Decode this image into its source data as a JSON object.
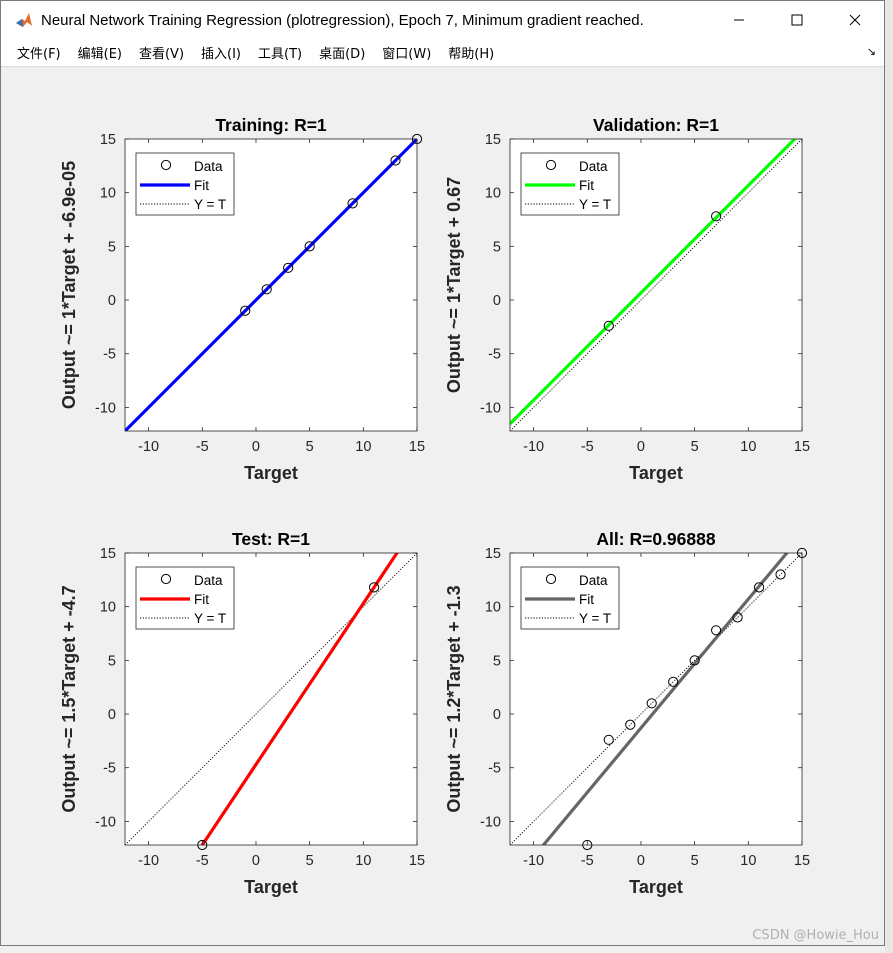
{
  "window": {
    "title": "Neural Network Training Regression (plotregression), Epoch 7, Minimum gradient reached.",
    "icon": "matlab-icon",
    "controls": [
      "minimize-icon",
      "maximize-icon",
      "close-icon"
    ]
  },
  "menu": {
    "items": [
      "文件(F)",
      "编辑(E)",
      "查看(V)",
      "插入(I)",
      "工具(T)",
      "桌面(D)",
      "窗口(W)",
      "帮助(H)"
    ],
    "overflow": "↘"
  },
  "watermark": "CSDN @Howie_Hou",
  "chart_data": [
    {
      "type": "scatter",
      "title": "Training: R=1",
      "xlabel": "Target",
      "ylabel": "Output ~= 1*Target + -6.9e-05",
      "xlim": [
        -12.2,
        15
      ],
      "ylim": [
        -12.2,
        15
      ],
      "xticks": [
        -10,
        -5,
        0,
        5,
        10,
        15
      ],
      "yticks": [
        -10,
        -5,
        0,
        5,
        10,
        15
      ],
      "fit_color": "#0000ff",
      "fit": {
        "slope": 1,
        "intercept": -6.9e-05
      },
      "points": [
        [
          -1,
          -1
        ],
        [
          1,
          1
        ],
        [
          3,
          3
        ],
        [
          5,
          5
        ],
        [
          9,
          9
        ],
        [
          13,
          13
        ],
        [
          15,
          15
        ]
      ],
      "legend": [
        "Data",
        "Fit",
        "Y = T"
      ],
      "legend_position": "top-left"
    },
    {
      "type": "scatter",
      "title": "Validation: R=1",
      "xlabel": "Target",
      "ylabel": "Output ~= 1*Target + 0.67",
      "xlim": [
        -12.2,
        15
      ],
      "ylim": [
        -12.2,
        15
      ],
      "xticks": [
        -10,
        -5,
        0,
        5,
        10,
        15
      ],
      "yticks": [
        -10,
        -5,
        0,
        5,
        10,
        15
      ],
      "fit_color": "#00ff00",
      "fit": {
        "slope": 1,
        "intercept": 0.67
      },
      "points": [
        [
          -3,
          -2.4
        ],
        [
          7,
          7.8
        ]
      ],
      "legend": [
        "Data",
        "Fit",
        "Y = T"
      ],
      "legend_position": "top-left"
    },
    {
      "type": "scatter",
      "title": "Test: R=1",
      "xlabel": "Target",
      "ylabel": "Output ~= 1.5*Target + -4.7",
      "xlim": [
        -12.2,
        15
      ],
      "ylim": [
        -12.2,
        15
      ],
      "xticks": [
        -10,
        -5,
        0,
        5,
        10,
        15
      ],
      "yticks": [
        -10,
        -5,
        0,
        5,
        10,
        15
      ],
      "fit_color": "#ff0000",
      "fit": {
        "slope": 1.5,
        "intercept": -4.7
      },
      "points": [
        [
          -5,
          -12.2
        ],
        [
          11,
          11.8
        ]
      ],
      "legend": [
        "Data",
        "Fit",
        "Y = T"
      ],
      "legend_position": "top-left"
    },
    {
      "type": "scatter",
      "title": "All: R=0.96888",
      "xlabel": "Target",
      "ylabel": "Output ~= 1.2*Target + -1.3",
      "xlim": [
        -12.2,
        15
      ],
      "ylim": [
        -12.2,
        15
      ],
      "xticks": [
        -10,
        -5,
        0,
        5,
        10,
        15
      ],
      "yticks": [
        -10,
        -5,
        0,
        5,
        10,
        15
      ],
      "fit_color": "#666666",
      "fit": {
        "slope": 1.2,
        "intercept": -1.3
      },
      "points": [
        [
          -5,
          -12.2
        ],
        [
          -3,
          -2.4
        ],
        [
          -1,
          -1
        ],
        [
          1,
          1
        ],
        [
          3,
          3
        ],
        [
          5,
          5
        ],
        [
          7,
          7.8
        ],
        [
          9,
          9
        ],
        [
          11,
          11.8
        ],
        [
          13,
          13
        ],
        [
          15,
          15
        ]
      ],
      "legend": [
        "Data",
        "Fit",
        "Y = T"
      ],
      "legend_position": "top-left"
    }
  ]
}
